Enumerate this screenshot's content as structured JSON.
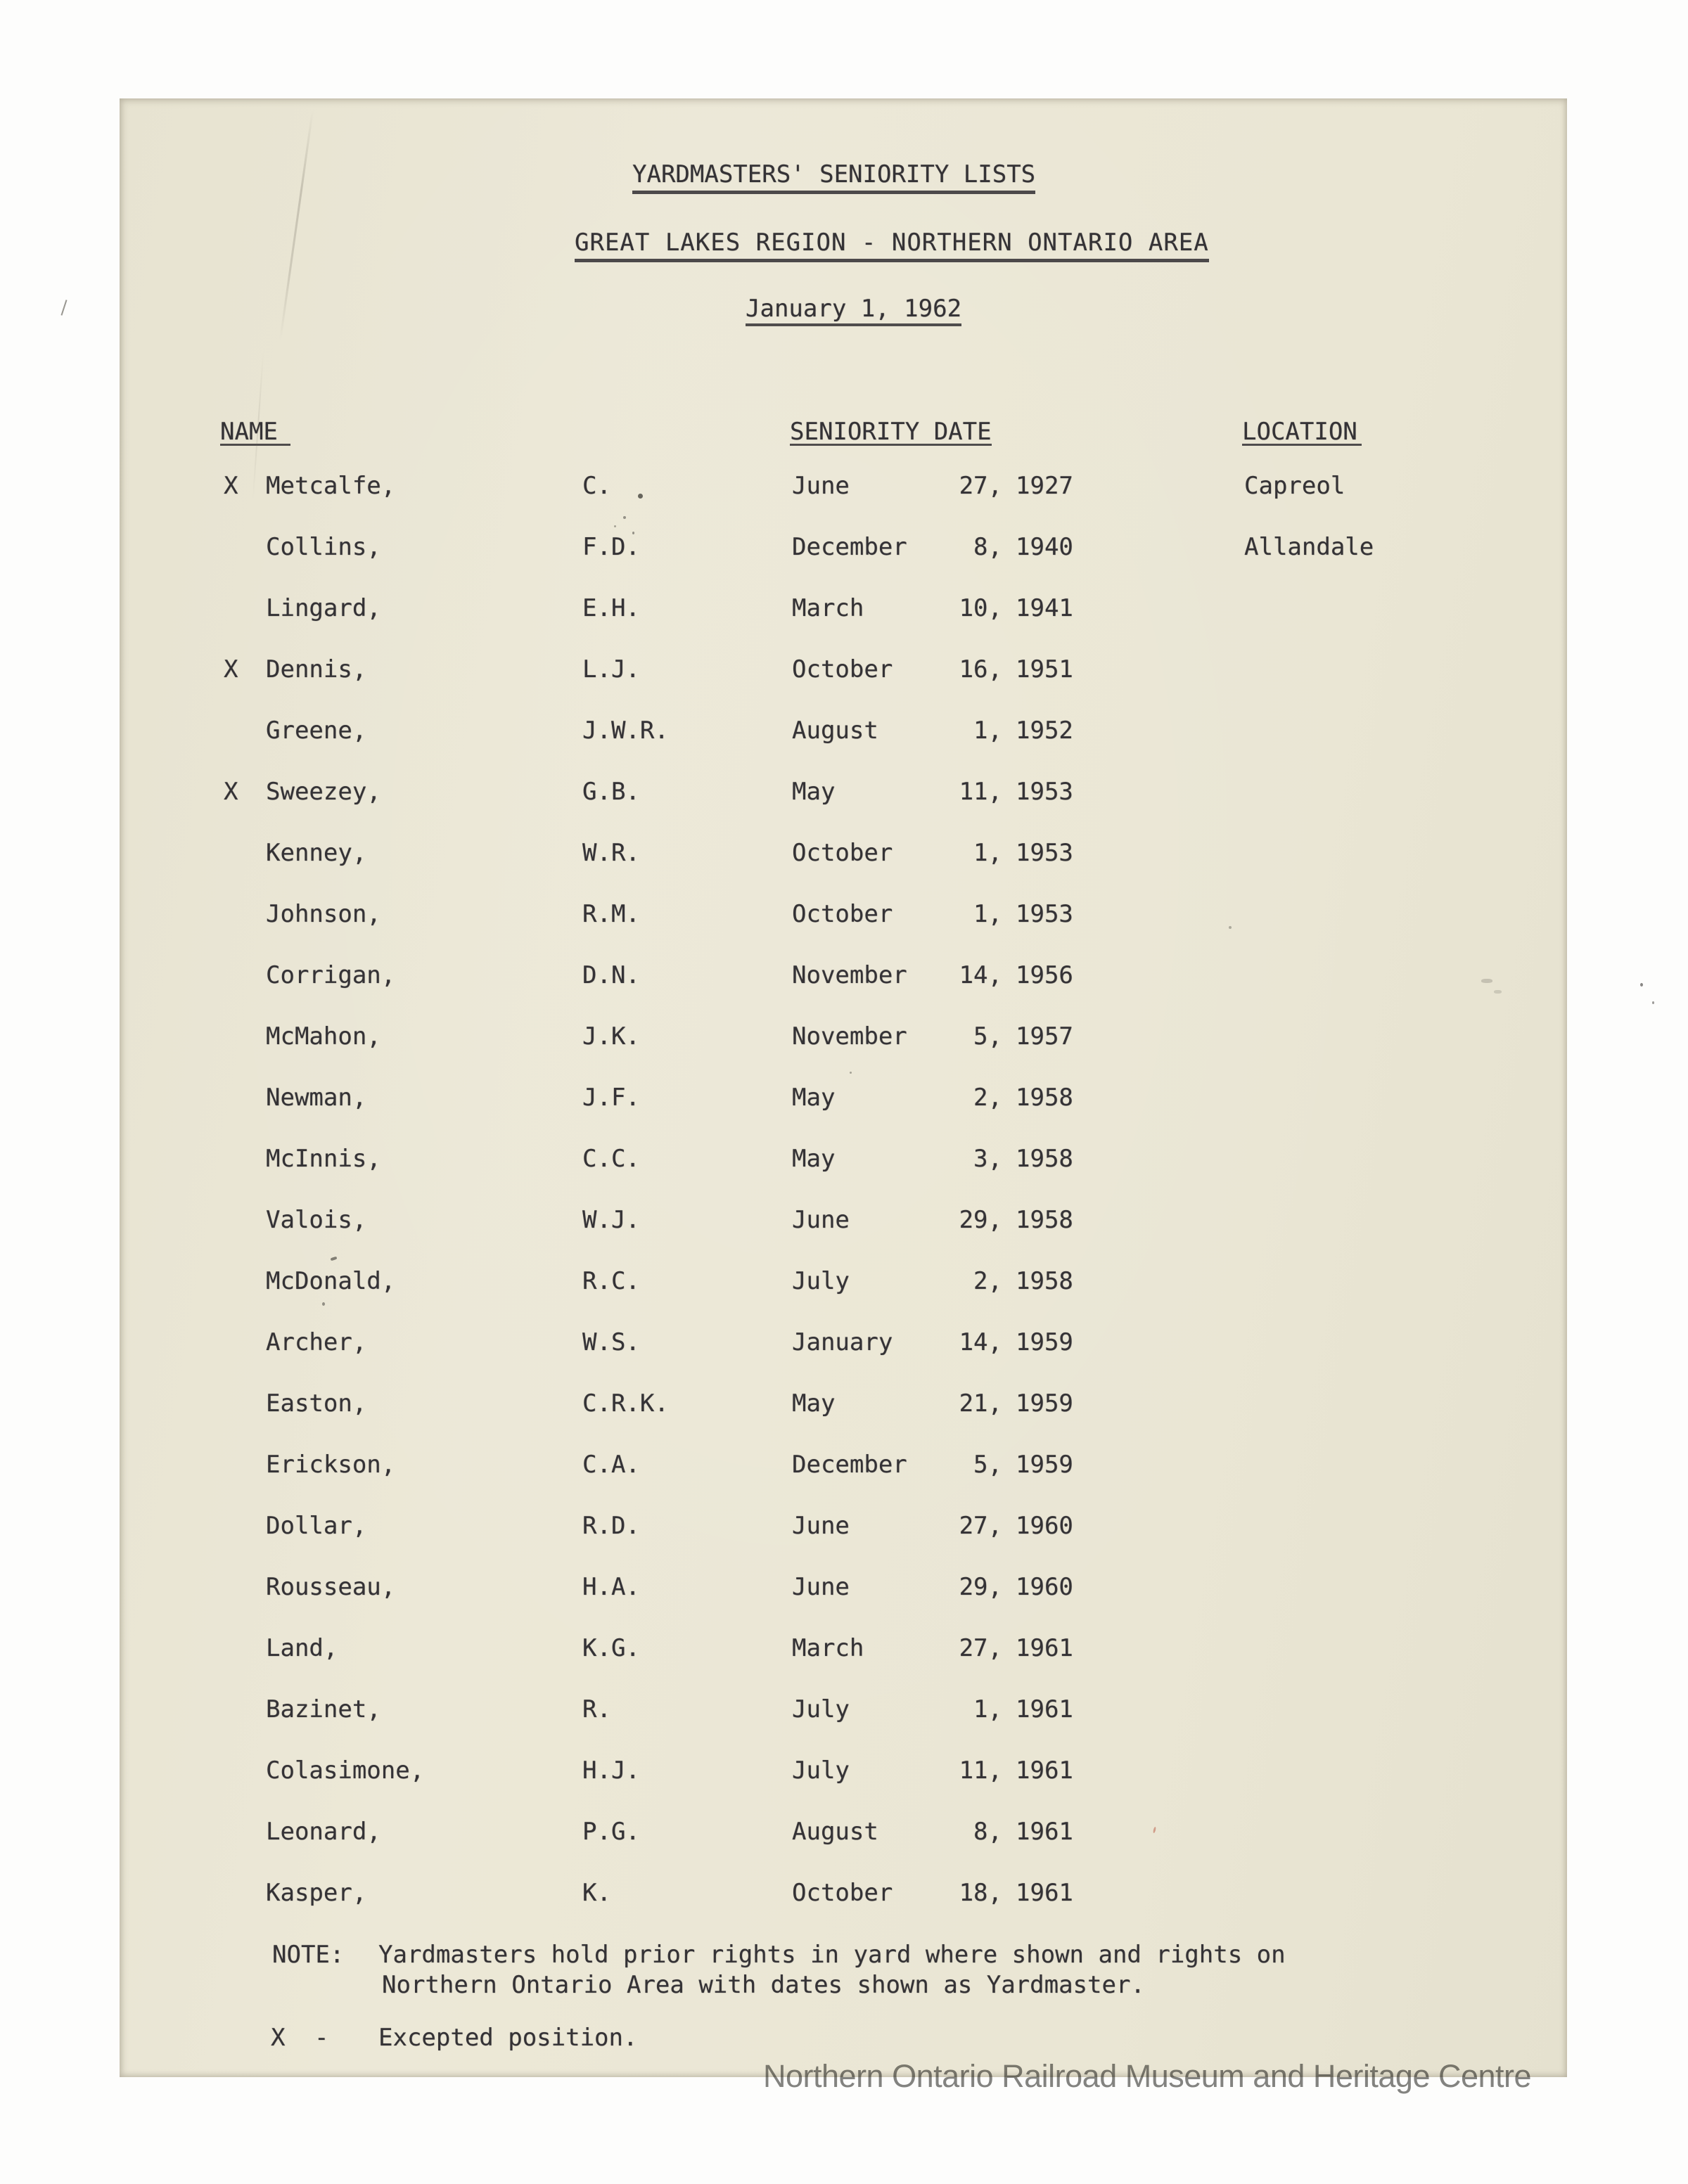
{
  "document": {
    "title": "YARDMASTERS' SENIORITY LISTS",
    "subtitle": "GREAT LAKES REGION - NORTHERN ONTARIO AREA",
    "date": "January 1, 1962",
    "columns": {
      "name": "NAME",
      "seniority_date": "SENIORITY DATE",
      "location": "LOCATION"
    },
    "rows": [
      {
        "excepted": "X",
        "surname": "Metcalfe,",
        "initials": "C.",
        "month": "June",
        "day": "27,",
        "year": "1927",
        "location": "Capreol"
      },
      {
        "excepted": "",
        "surname": "Collins,",
        "initials": "F.D.",
        "month": "December",
        "day": "8,",
        "year": "1940",
        "location": "Allandale"
      },
      {
        "excepted": "",
        "surname": "Lingard,",
        "initials": "E.H.",
        "month": "March",
        "day": "10,",
        "year": "1941",
        "location": ""
      },
      {
        "excepted": "X",
        "surname": "Dennis,",
        "initials": "L.J.",
        "month": "October",
        "day": "16,",
        "year": "1951",
        "location": ""
      },
      {
        "excepted": "",
        "surname": "Greene,",
        "initials": "J.W.R.",
        "month": "August",
        "day": "1,",
        "year": "1952",
        "location": ""
      },
      {
        "excepted": "X",
        "surname": "Sweezey,",
        "initials": "G.B.",
        "month": "May",
        "day": "11,",
        "year": "1953",
        "location": ""
      },
      {
        "excepted": "",
        "surname": "Kenney,",
        "initials": "W.R.",
        "month": "October",
        "day": "1,",
        "year": "1953",
        "location": ""
      },
      {
        "excepted": "",
        "surname": "Johnson,",
        "initials": "R.M.",
        "month": "October",
        "day": "1,",
        "year": "1953",
        "location": ""
      },
      {
        "excepted": "",
        "surname": "Corrigan,",
        "initials": "D.N.",
        "month": "November",
        "day": "14,",
        "year": "1956",
        "location": ""
      },
      {
        "excepted": "",
        "surname": "McMahon,",
        "initials": "J.K.",
        "month": "November",
        "day": "5,",
        "year": "1957",
        "location": ""
      },
      {
        "excepted": "",
        "surname": "Newman,",
        "initials": "J.F.",
        "month": "May",
        "day": "2,",
        "year": "1958",
        "location": ""
      },
      {
        "excepted": "",
        "surname": "McInnis,",
        "initials": "C.C.",
        "month": "May",
        "day": "3,",
        "year": "1958",
        "location": ""
      },
      {
        "excepted": "",
        "surname": "Valois,",
        "initials": "W.J.",
        "month": "June",
        "day": "29,",
        "year": "1958",
        "location": ""
      },
      {
        "excepted": "",
        "surname": "McDonald,",
        "initials": "R.C.",
        "month": "July",
        "day": "2,",
        "year": "1958",
        "location": ""
      },
      {
        "excepted": "",
        "surname": "Archer,",
        "initials": "W.S.",
        "month": "January",
        "day": "14,",
        "year": "1959",
        "location": ""
      },
      {
        "excepted": "",
        "surname": "Easton,",
        "initials": "C.R.K.",
        "month": "May",
        "day": "21,",
        "year": "1959",
        "location": ""
      },
      {
        "excepted": "",
        "surname": "Erickson,",
        "initials": "C.A.",
        "month": "December",
        "day": "5,",
        "year": "1959",
        "location": ""
      },
      {
        "excepted": "",
        "surname": "Dollar,",
        "initials": "R.D.",
        "month": "June",
        "day": "27,",
        "year": "1960",
        "location": ""
      },
      {
        "excepted": "",
        "surname": "Rousseau,",
        "initials": "H.A.",
        "month": "June",
        "day": "29,",
        "year": "1960",
        "location": ""
      },
      {
        "excepted": "",
        "surname": "Land,",
        "initials": "K.G.",
        "month": "March",
        "day": "27,",
        "year": "1961",
        "location": ""
      },
      {
        "excepted": "",
        "surname": "Bazinet,",
        "initials": "R.",
        "month": "July",
        "day": "1,",
        "year": "1961",
        "location": ""
      },
      {
        "excepted": "",
        "surname": "Colasimone,",
        "initials": "H.J.",
        "month": "July",
        "day": "11,",
        "year": "1961",
        "location": ""
      },
      {
        "excepted": "",
        "surname": "Leonard,",
        "initials": "P.G.",
        "month": "August",
        "day": "8,",
        "year": "1961",
        "location": ""
      },
      {
        "excepted": "",
        "surname": "Kasper,",
        "initials": "K.",
        "month": "October",
        "day": "18,",
        "year": "1961",
        "location": ""
      }
    ],
    "note": {
      "label": "NOTE:",
      "line1": "Yardmasters hold prior rights in yard where shown and rights on",
      "line2": "Northern Ontario Area with dates shown as Yardmaster."
    },
    "legend": {
      "marker": "X",
      "dash": "-",
      "text": "Excepted position."
    },
    "watermark": "Northern Ontario Railroad Museum and Heritage Centre",
    "ink_color": "#2c2a2f",
    "paper_color": "#eae6d4"
  }
}
